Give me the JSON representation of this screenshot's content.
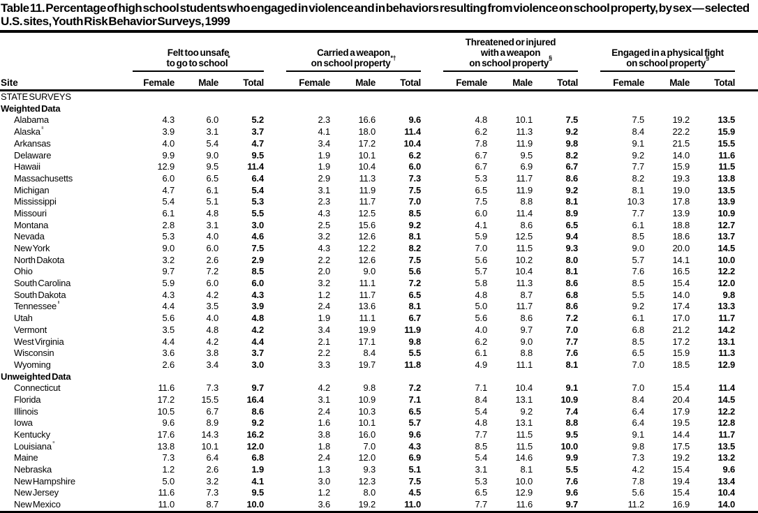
{
  "title": "Table 11. Percentage of high school students who engaged in violence and in behaviors resulting from violence on school property, by sex — selected U.S. sites, Youth Risk Behavior Surveys, 1999",
  "table": {
    "site_column_header": "Site",
    "column_groups": [
      {
        "title_lines": [
          "Felt too unsafe",
          "to go to school*"
        ],
        "columns": [
          "Female",
          "Male",
          "Total"
        ]
      },
      {
        "title_lines": [
          "Carried a weapon",
          "on school property*†"
        ],
        "columns": [
          "Female",
          "Male",
          "Total"
        ]
      },
      {
        "title_lines": [
          "Threatened or injured",
          "with a weapon",
          "on school property§"
        ],
        "columns": [
          "Female",
          "Male",
          "Total"
        ]
      },
      {
        "title_lines": [
          "Engaged in a physical fight",
          "on school property§"
        ],
        "columns": [
          "Female",
          "Male",
          "Total"
        ]
      }
    ],
    "rows": [
      {
        "type": "section",
        "label": "STATE SURVEYS"
      },
      {
        "type": "subsection",
        "label": "Weighted Data"
      },
      {
        "type": "data",
        "site": "Alabama",
        "values": [
          "4.3",
          "6.0",
          "5.2",
          "2.3",
          "16.6",
          "9.6",
          "4.8",
          "10.1",
          "7.5",
          "7.5",
          "19.2",
          "13.5"
        ]
      },
      {
        "type": "data",
        "site": "Alaska¶",
        "values": [
          "3.9",
          "3.1",
          "3.7",
          "4.1",
          "18.0",
          "11.4",
          "6.2",
          "11.3",
          "9.2",
          "8.4",
          "22.2",
          "15.9"
        ]
      },
      {
        "type": "data",
        "site": "Arkansas",
        "values": [
          "4.0",
          "5.4",
          "4.7",
          "3.4",
          "17.2",
          "10.4",
          "7.8",
          "11.9",
          "9.8",
          "9.1",
          "21.5",
          "15.5"
        ]
      },
      {
        "type": "data",
        "site": "Delaware",
        "values": [
          "9.9",
          "9.0",
          "9.5",
          "1.9",
          "10.1",
          "6.2",
          "6.7",
          "9.5",
          "8.2",
          "9.2",
          "14.0",
          "11.6"
        ]
      },
      {
        "type": "data",
        "site": "Hawaii",
        "values": [
          "12.9",
          "9.5",
          "11.4",
          "1.9",
          "10.4",
          "6.0",
          "6.7",
          "6.9",
          "6.7",
          "7.7",
          "15.9",
          "11.5"
        ]
      },
      {
        "type": "data",
        "site": "Massachusetts",
        "values": [
          "6.0",
          "6.5",
          "6.4",
          "2.9",
          "11.3",
          "7.3",
          "5.3",
          "11.7",
          "8.6",
          "8.2",
          "19.3",
          "13.8"
        ]
      },
      {
        "type": "data",
        "site": "Michigan",
        "values": [
          "4.7",
          "6.1",
          "5.4",
          "3.1",
          "11.9",
          "7.5",
          "6.5",
          "11.9",
          "9.2",
          "8.1",
          "19.0",
          "13.5"
        ]
      },
      {
        "type": "data",
        "site": "Mississippi",
        "values": [
          "5.4",
          "5.1",
          "5.3",
          "2.3",
          "11.7",
          "7.0",
          "7.5",
          "8.8",
          "8.1",
          "10.3",
          "17.8",
          "13.9"
        ]
      },
      {
        "type": "data",
        "site": "Missouri",
        "values": [
          "6.1",
          "4.8",
          "5.5",
          "4.3",
          "12.5",
          "8.5",
          "6.0",
          "11.4",
          "8.9",
          "7.7",
          "13.9",
          "10.9"
        ]
      },
      {
        "type": "data",
        "site": "Montana",
        "values": [
          "2.8",
          "3.1",
          "3.0",
          "2.5",
          "15.6",
          "9.2",
          "4.1",
          "8.6",
          "6.5",
          "6.1",
          "18.8",
          "12.7"
        ]
      },
      {
        "type": "data",
        "site": "Nevada",
        "values": [
          "5.3",
          "4.0",
          "4.6",
          "3.2",
          "12.6",
          "8.1",
          "5.9",
          "12.5",
          "9.4",
          "8.5",
          "18.6",
          "13.7"
        ]
      },
      {
        "type": "data",
        "site": "New York",
        "values": [
          "9.0",
          "6.0",
          "7.5",
          "4.3",
          "12.2",
          "8.2",
          "7.0",
          "11.5",
          "9.3",
          "9.0",
          "20.0",
          "14.5"
        ]
      },
      {
        "type": "data",
        "site": "North Dakota",
        "values": [
          "3.2",
          "2.6",
          "2.9",
          "2.2",
          "12.6",
          "7.5",
          "5.6",
          "10.2",
          "8.0",
          "5.7",
          "14.1",
          "10.0"
        ]
      },
      {
        "type": "data",
        "site": "Ohio",
        "values": [
          "9.7",
          "7.2",
          "8.5",
          "2.0",
          "9.0",
          "5.6",
          "5.7",
          "10.4",
          "8.1",
          "7.6",
          "16.5",
          "12.2"
        ]
      },
      {
        "type": "data",
        "site": "South Carolina",
        "values": [
          "5.9",
          "6.0",
          "6.0",
          "3.2",
          "11.1",
          "7.2",
          "5.8",
          "11.3",
          "8.6",
          "8.5",
          "15.4",
          "12.0"
        ]
      },
      {
        "type": "data",
        "site": "South Dakota",
        "values": [
          "4.3",
          "4.2",
          "4.3",
          "1.2",
          "11.7",
          "6.5",
          "4.8",
          "8.7",
          "6.8",
          "5.5",
          "14.0",
          "9.8"
        ]
      },
      {
        "type": "data",
        "site": "Tennessee¶",
        "values": [
          "4.4",
          "3.5",
          "3.9",
          "2.4",
          "13.6",
          "8.1",
          "5.0",
          "11.7",
          "8.6",
          "9.2",
          "17.4",
          "13.3"
        ]
      },
      {
        "type": "data",
        "site": "Utah",
        "values": [
          "5.6",
          "4.0",
          "4.8",
          "1.9",
          "11.1",
          "6.7",
          "5.6",
          "8.6",
          "7.2",
          "6.1",
          "17.0",
          "11.7"
        ]
      },
      {
        "type": "data",
        "site": "Vermont",
        "values": [
          "3.5",
          "4.8",
          "4.2",
          "3.4",
          "19.9",
          "11.9",
          "4.0",
          "9.7",
          "7.0",
          "6.8",
          "21.2",
          "14.2"
        ]
      },
      {
        "type": "data",
        "site": "West Virginia",
        "values": [
          "4.4",
          "4.2",
          "4.4",
          "2.1",
          "17.1",
          "9.8",
          "6.2",
          "9.0",
          "7.7",
          "8.5",
          "17.2",
          "13.1"
        ]
      },
      {
        "type": "data",
        "site": "Wisconsin",
        "values": [
          "3.6",
          "3.8",
          "3.7",
          "2.2",
          "8.4",
          "5.5",
          "6.1",
          "8.8",
          "7.6",
          "6.5",
          "15.9",
          "11.3"
        ]
      },
      {
        "type": "data",
        "site": "Wyoming",
        "values": [
          "2.6",
          "3.4",
          "3.0",
          "3.3",
          "19.7",
          "11.8",
          "4.9",
          "11.1",
          "8.1",
          "7.0",
          "18.5",
          "12.9"
        ]
      },
      {
        "type": "subsection",
        "label": "Unweighted Data"
      },
      {
        "type": "data",
        "site": "Connecticut",
        "values": [
          "11.6",
          "7.3",
          "9.7",
          "4.2",
          "9.8",
          "7.2",
          "7.1",
          "10.4",
          "9.1",
          "7.0",
          "15.4",
          "11.4"
        ]
      },
      {
        "type": "data",
        "site": "Florida",
        "values": [
          "17.2",
          "15.5",
          "16.4",
          "3.1",
          "10.9",
          "7.1",
          "8.4",
          "13.1",
          "10.9",
          "8.4",
          "20.4",
          "14.5"
        ]
      },
      {
        "type": "data",
        "site": "Illinois",
        "values": [
          "10.5",
          "6.7",
          "8.6",
          "2.4",
          "10.3",
          "6.5",
          "5.4",
          "9.2",
          "7.4",
          "6.4",
          "17.9",
          "12.2"
        ]
      },
      {
        "type": "data",
        "site": "Iowa",
        "values": [
          "9.6",
          "8.9",
          "9.2",
          "1.6",
          "10.1",
          "5.7",
          "4.8",
          "13.1",
          "8.8",
          "6.4",
          "19.5",
          "12.8"
        ]
      },
      {
        "type": "data",
        "site": "Kentucky",
        "values": [
          "17.6",
          "14.3",
          "16.2",
          "3.8",
          "16.0",
          "9.6",
          "7.7",
          "11.5",
          "9.5",
          "9.1",
          "14.4",
          "11.7"
        ]
      },
      {
        "type": "data",
        "site": "Louisiana¶",
        "values": [
          "13.8",
          "10.1",
          "12.0",
          "1.8",
          "7.0",
          "4.3",
          "8.5",
          "11.5",
          "10.0",
          "9.8",
          "17.5",
          "13.5"
        ]
      },
      {
        "type": "data",
        "site": "Maine",
        "values": [
          "7.3",
          "6.4",
          "6.8",
          "2.4",
          "12.0",
          "6.9",
          "5.4",
          "14.6",
          "9.9",
          "7.3",
          "19.2",
          "13.2"
        ]
      },
      {
        "type": "data",
        "site": "Nebraska",
        "values": [
          "1.2",
          "2.6",
          "1.9",
          "1.3",
          "9.3",
          "5.1",
          "3.1",
          "8.1",
          "5.5",
          "4.2",
          "15.4",
          "9.6"
        ]
      },
      {
        "type": "data",
        "site": "New Hampshire",
        "values": [
          "5.0",
          "3.2",
          "4.1",
          "3.0",
          "12.3",
          "7.5",
          "5.3",
          "10.0",
          "7.6",
          "7.8",
          "19.4",
          "13.4"
        ]
      },
      {
        "type": "data",
        "site": "New Jersey",
        "values": [
          "11.6",
          "7.3",
          "9.5",
          "1.2",
          "8.0",
          "4.5",
          "6.5",
          "12.9",
          "9.6",
          "5.6",
          "15.4",
          "10.4"
        ]
      },
      {
        "type": "data",
        "site": "New Mexico",
        "values": [
          "11.0",
          "8.7",
          "10.0",
          "3.6",
          "19.2",
          "11.0",
          "7.7",
          "11.6",
          "9.7",
          "11.2",
          "16.9",
          "14.0"
        ]
      }
    ]
  }
}
